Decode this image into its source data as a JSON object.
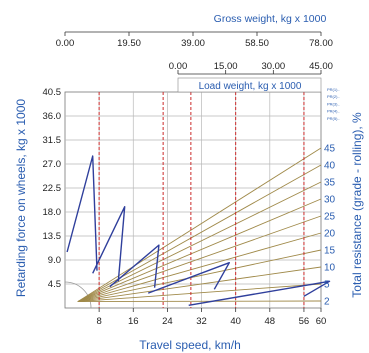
{
  "chart_data": {
    "type": "line",
    "top_axis": {
      "label": "Gross weight, kg x 1000",
      "ticks": [
        "0.00",
        "19.50",
        "39.00",
        "58.50",
        "78.00"
      ],
      "range": [
        0,
        78
      ]
    },
    "second_axis": {
      "label": "Load weight, kg x 1000",
      "ticks": [
        "0.00",
        "15.00",
        "30.00",
        "45.00"
      ],
      "range": [
        0,
        45
      ]
    },
    "x_axis": {
      "label": "Travel speed, km/h",
      "ticks": [
        "8",
        "16",
        "24",
        "32",
        "40",
        "48",
        "56",
        "60"
      ],
      "tick_values": [
        8,
        16,
        24,
        32,
        40,
        48,
        56,
        60
      ],
      "range": [
        0,
        60
      ]
    },
    "y_axis": {
      "label": "Retarding force on wheels, kg x 1000",
      "ticks": [
        "4.5",
        "9.0",
        "13.5",
        "18.0",
        "22.5",
        "27.0",
        "31.5",
        "36.0",
        "40.5"
      ],
      "tick_values": [
        4.5,
        9.0,
        13.5,
        18.0,
        22.5,
        27.0,
        31.5,
        36.0,
        40.5
      ],
      "range": [
        0,
        40.5
      ]
    },
    "right_axis": {
      "label": "Total resistance (grade - rolling), %",
      "ticks": [
        "2",
        "5",
        "10",
        "15",
        "20",
        "25",
        "30",
        "35",
        "40",
        "45"
      ],
      "tick_values": [
        2,
        5,
        10,
        15,
        20,
        25,
        30,
        35,
        40,
        45
      ]
    },
    "right_small_labels": [
      "PR(1)..",
      "PR(2)..",
      "PR(3)..",
      "PR(4)..",
      "PR(5).."
    ],
    "red_dashed_speeds": [
      8,
      23,
      29.5,
      40,
      56
    ],
    "gear_curves": [
      {
        "points": [
          [
            0.5,
            10.5
          ],
          [
            6.5,
            28.5
          ],
          [
            7.5,
            7.0
          ]
        ]
      },
      {
        "points": [
          [
            6.5,
            6.5
          ],
          [
            14,
            19
          ],
          [
            12.5,
            5.0
          ]
        ]
      },
      {
        "points": [
          [
            10.5,
            4.0
          ],
          [
            22,
            11.8
          ],
          [
            21,
            3.8
          ]
        ]
      },
      {
        "points": [
          [
            19.5,
            2.8
          ],
          [
            38.5,
            8.5
          ],
          [
            35,
            3.5
          ]
        ]
      },
      {
        "points": [
          [
            29,
            0.5
          ],
          [
            62,
            5.0
          ],
          [
            56,
            2.2
          ]
        ]
      }
    ],
    "colors": {
      "curve": "#2f3f9c",
      "resistance": "#a08a4a",
      "dashed": "#cc2a2a",
      "grid": "#b8b8b8",
      "label": "#2a5db0"
    },
    "grid": true
  }
}
